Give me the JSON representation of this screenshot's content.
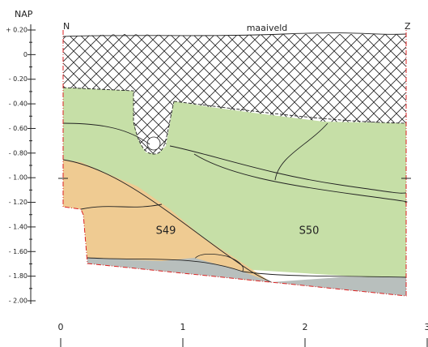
{
  "y_axis": {
    "title": "NAP",
    "ticks": [
      "+ 0.20",
      "0",
      "- 0.20",
      "- 0.40",
      "- 0.60",
      "- 0.80",
      "- 1.00",
      "- 1.20",
      "- 1.40",
      "- 1.60",
      "- 1.80",
      "- 2.00"
    ]
  },
  "x_axis": {
    "ticks": [
      "0",
      "1",
      "2",
      "3"
    ]
  },
  "labels": {
    "north": "N",
    "south": "Z",
    "surface": "maaiveld",
    "zone_left": "S49",
    "zone_right": "S50"
  }
}
